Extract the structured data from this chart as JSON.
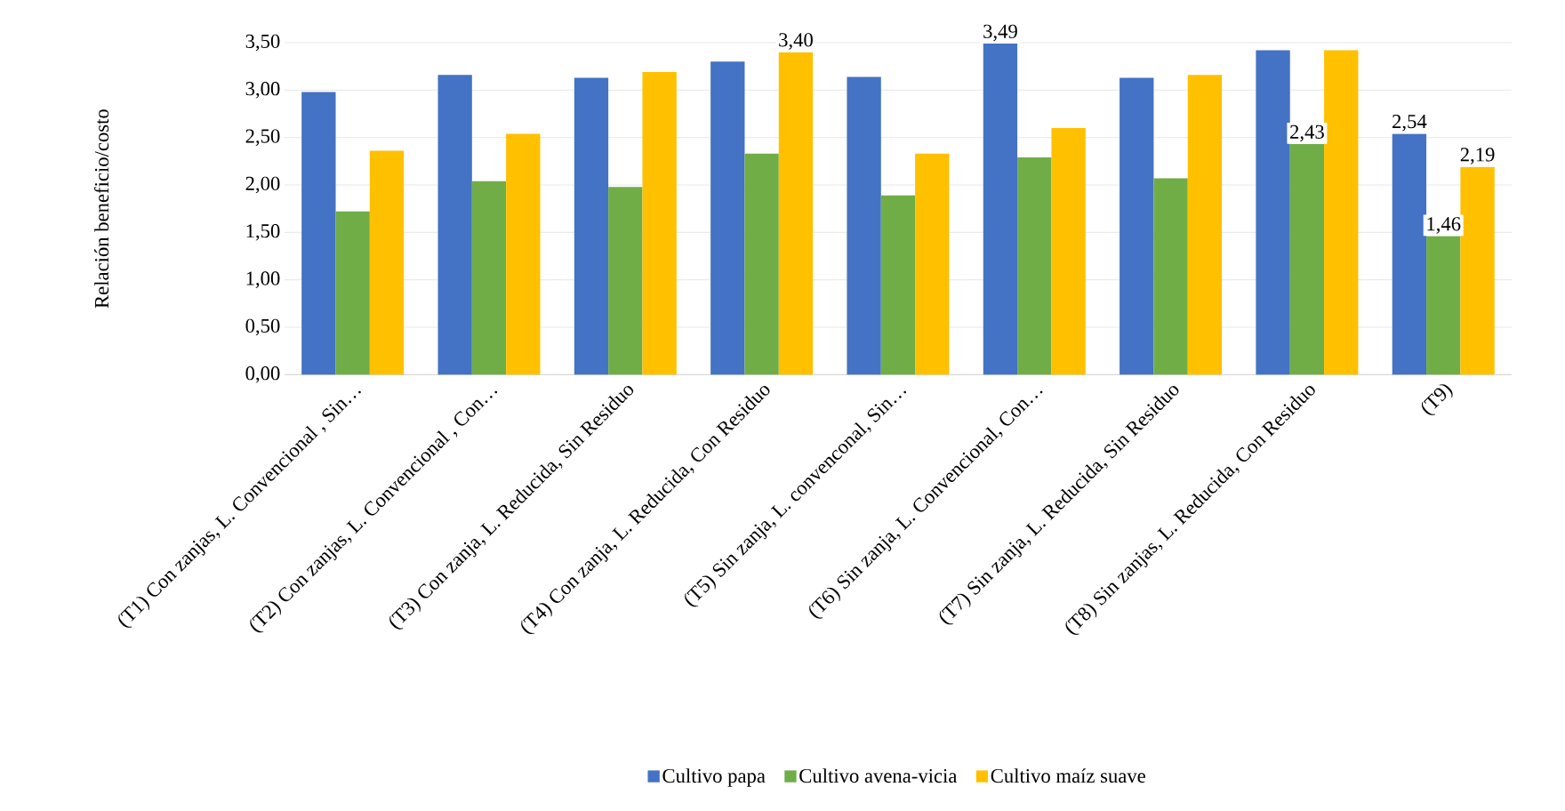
{
  "chart_data": {
    "type": "bar",
    "ylabel": "Relación beneficio/costo",
    "categories": [
      "(T1) Con zanjas, L. Convencional , Sin…",
      "(T2) Con zanjas, L. Convencional , Con…",
      "(T3) Con zanja, L. Reducida, Sin Residuo",
      "(T4) Con zanja, L. Reducida, Con Residuo",
      "(T5) Sin zanja, L. convenconal, Sin…",
      "(T6) Sin zanja, L. Convencional, Con…",
      "(T7) Sin zanja, L. Reducida, Sin Residuo",
      "(T8) Sin zanjas, L. Reducida, Con Residuo",
      "(T9)"
    ],
    "series": [
      {
        "name": "Cultivo papa",
        "color": "#4472c4",
        "values": [
          2.98,
          3.16,
          3.13,
          3.3,
          3.14,
          3.49,
          3.13,
          3.42,
          2.54
        ],
        "value_labels": [
          null,
          null,
          null,
          null,
          null,
          "3,49",
          null,
          null,
          "2,54"
        ]
      },
      {
        "name": "Cultivo avena-vicia",
        "color": "#70ad47",
        "values": [
          1.72,
          2.04,
          1.98,
          2.33,
          1.89,
          2.29,
          2.07,
          2.43,
          1.46
        ],
        "value_labels": [
          null,
          null,
          null,
          null,
          null,
          null,
          null,
          "2,43",
          "1,46"
        ]
      },
      {
        "name": "Cultivo maíz suave",
        "color": "#ffc000",
        "values": [
          2.36,
          2.54,
          3.19,
          3.4,
          2.33,
          2.6,
          3.16,
          3.42,
          2.19
        ],
        "value_labels": [
          null,
          null,
          null,
          "3,40",
          null,
          null,
          null,
          null,
          "2,19"
        ]
      }
    ],
    "ylim": [
      0,
      3.5
    ],
    "yticks": [
      {
        "value": 0,
        "label": "0,00"
      },
      {
        "value": 0.5,
        "label": "0,50"
      },
      {
        "value": 1,
        "label": "1,00"
      },
      {
        "value": 1.5,
        "label": "1,50"
      },
      {
        "value": 2,
        "label": "2,00"
      },
      {
        "value": 2.5,
        "label": "2,50"
      },
      {
        "value": 3,
        "label": "3,00"
      },
      {
        "value": 3.5,
        "label": "3,50"
      }
    ],
    "grid": "y",
    "legend": "bottom"
  }
}
